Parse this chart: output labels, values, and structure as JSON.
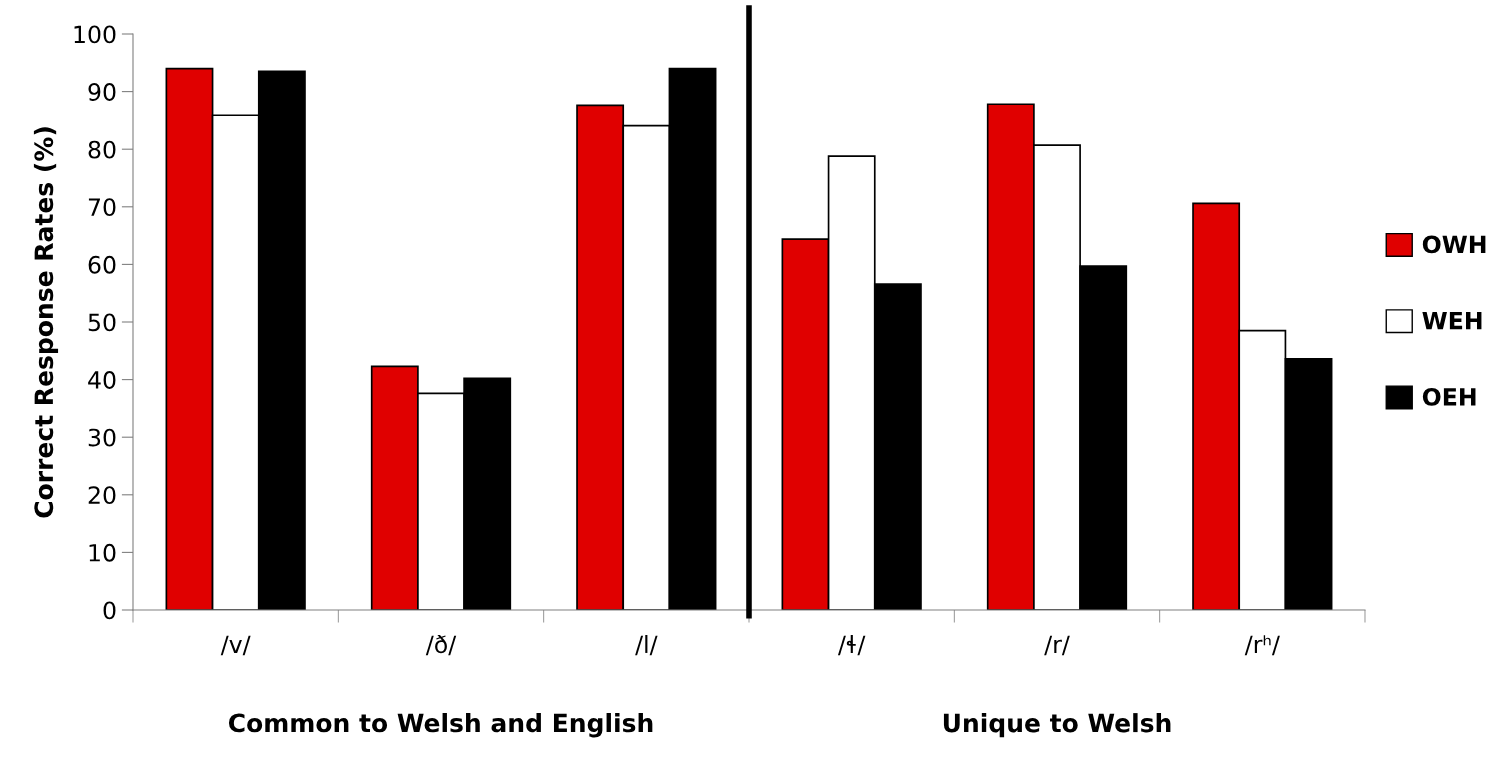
{
  "chart_data": {
    "type": "bar",
    "ylabel": "Correct Response Rates (%)",
    "categories": [
      "/v/",
      "/ð/",
      "/l/",
      "/ɬ/",
      "/r/",
      "/rʰ/"
    ],
    "series": [
      {
        "name": "OWH",
        "color": "#e00000",
        "values": [
          94.0,
          42.3,
          87.6,
          64.4,
          87.8,
          70.6
        ]
      },
      {
        "name": "WEH",
        "color": "#ffffff",
        "values": [
          85.9,
          37.6,
          84.1,
          78.8,
          80.7,
          48.5
        ]
      },
      {
        "name": "OEH",
        "color": "#000000",
        "values": [
          93.5,
          40.2,
          94.0,
          56.6,
          59.7,
          43.6
        ]
      }
    ],
    "ylim": [
      0,
      100
    ],
    "yticks": [
      0,
      10,
      20,
      30,
      40,
      50,
      60,
      70,
      80,
      90,
      100
    ],
    "annotations": [
      "Common to Welsh and English",
      "Unique to Welsh"
    ],
    "grid": false,
    "legend": "right"
  }
}
